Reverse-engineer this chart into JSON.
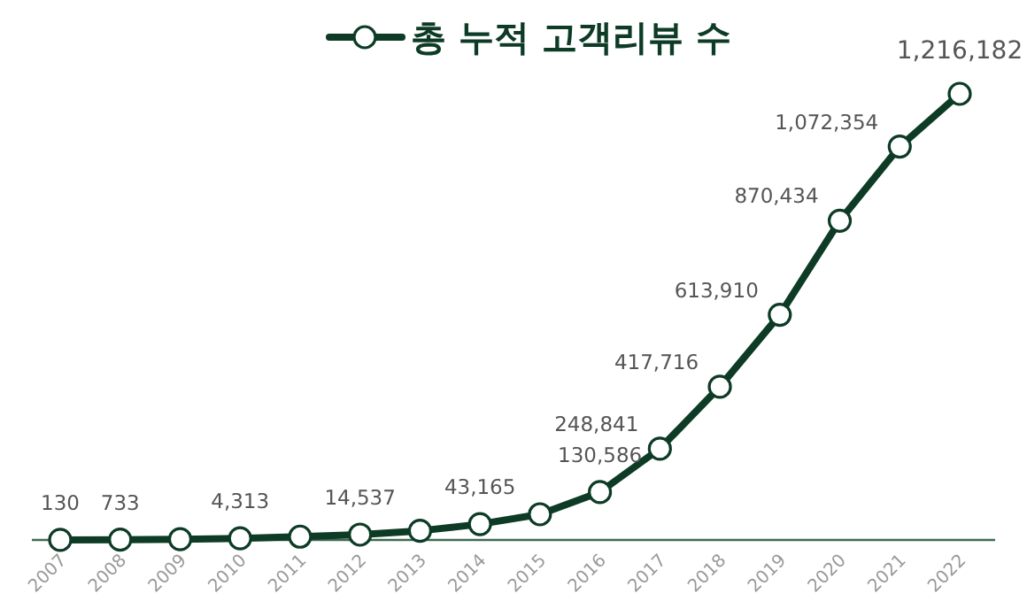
{
  "chart_data": {
    "type": "line",
    "legend": "top",
    "marker": "circle",
    "line_style": "solid",
    "categories": [
      "2007",
      "2008",
      "2009",
      "2010",
      "2011",
      "2012",
      "2013",
      "2014",
      "2015",
      "2016",
      "2017",
      "2018",
      "2019",
      "2020",
      "2021",
      "2022"
    ],
    "series": [
      {
        "name": "총 누적 고객리뷰 수",
        "color": "#0d3b26",
        "values": [
          130,
          733,
          2000,
          4313,
          9000,
          14537,
          25000,
          43165,
          70000,
          130586,
          248841,
          417716,
          613910,
          870434,
          1072354,
          1216182
        ],
        "value_labels": [
          "130",
          "733",
          null,
          "4,313",
          null,
          "14,537",
          null,
          "43,165",
          null,
          "130,586",
          "248,841",
          "417,716",
          "613,910",
          "870,434",
          "1,072,354",
          "1,216,182"
        ]
      }
    ]
  }
}
